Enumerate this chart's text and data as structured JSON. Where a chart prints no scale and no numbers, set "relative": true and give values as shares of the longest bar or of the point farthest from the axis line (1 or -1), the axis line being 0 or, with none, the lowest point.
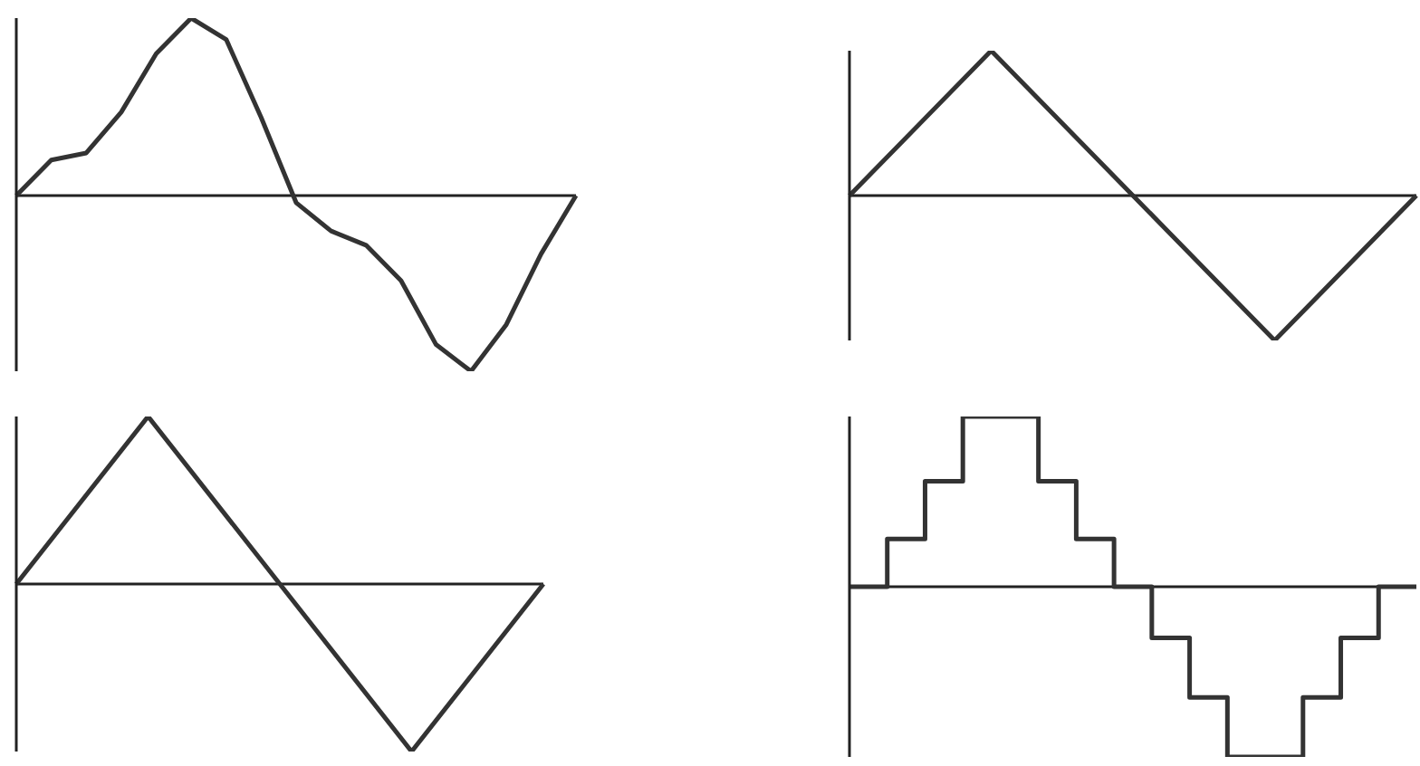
{
  "chart_data": [
    {
      "type": "line",
      "relative": true,
      "color": "#333333",
      "categories": [
        null,
        null,
        null,
        null,
        null,
        null,
        null,
        null,
        null,
        null,
        null,
        null,
        null,
        null,
        null,
        null,
        null
      ],
      "values": [
        0,
        0.2,
        0.24,
        0.47,
        0.8,
        1,
        0.88,
        0.44,
        -0.04,
        -0.2,
        -0.28,
        -0.48,
        -0.84,
        -0.99,
        -0.73,
        -0.33,
        0
      ]
    },
    {
      "type": "line",
      "relative": true,
      "color": "#333333",
      "categories": [
        null,
        null,
        null,
        null,
        null
      ],
      "values": [
        0,
        1,
        0,
        -1,
        0
      ]
    },
    {
      "type": "line",
      "relative": true,
      "color": "#333333",
      "categories": [
        null,
        null,
        null,
        null,
        null
      ],
      "values": [
        0,
        1,
        0,
        -1,
        0
      ]
    },
    {
      "type": "step",
      "relative": true,
      "color": "#333333",
      "categories": [
        null,
        null,
        null,
        null,
        null,
        null,
        null,
        null,
        null,
        null,
        null,
        null,
        null,
        null,
        null,
        null
      ],
      "values": [
        0,
        0.28,
        0.62,
        1,
        1,
        0.62,
        0.28,
        0,
        -0.3,
        -0.65,
        -1,
        -1,
        -0.65,
        -0.3,
        0,
        0
      ]
    }
  ]
}
